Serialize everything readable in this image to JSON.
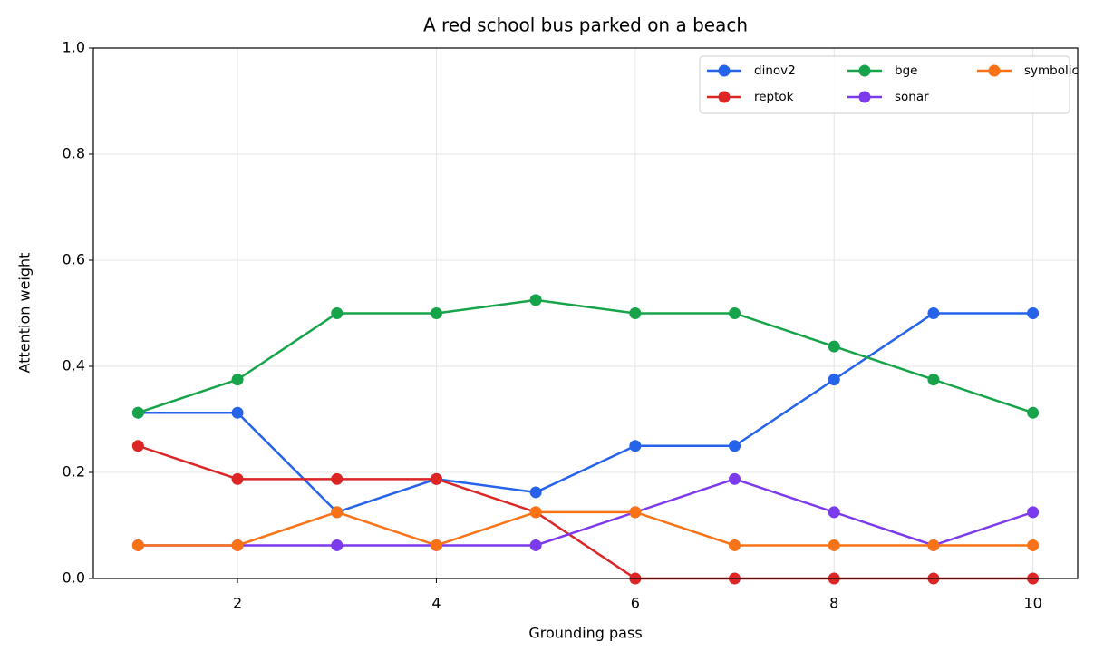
{
  "chart_data": {
    "type": "line",
    "title": "A red school bus parked on a beach",
    "x_label": "Grounding pass",
    "y_label": "Attention weight",
    "x": [
      1,
      2,
      3,
      4,
      5,
      6,
      7,
      8,
      9,
      10
    ],
    "series": [
      {
        "name": "dinov2",
        "color": "#2563eb",
        "values": [
          0.3125,
          0.3125,
          0.125,
          0.1875,
          0.1625,
          0.25,
          0.25,
          0.375,
          0.5,
          0.5
        ]
      },
      {
        "name": "reptok",
        "color": "#dc2626",
        "values": [
          0.25,
          0.1875,
          0.1875,
          0.1875,
          0.125,
          0,
          0,
          0,
          0,
          0
        ]
      },
      {
        "name": "bge",
        "color": "#16a34a",
        "values": [
          0.3125,
          0.375,
          0.5,
          0.5,
          0.525,
          0.5,
          0.5,
          0.4375,
          0.375,
          0.3125
        ]
      },
      {
        "name": "sonar",
        "color": "#7c3aed",
        "values": [
          0.0625,
          0.0625,
          0.0625,
          0.0625,
          0.0625,
          0.125,
          0.1875,
          0.125,
          0.0625,
          0.125
        ]
      },
      {
        "name": "symbolic",
        "color": "#f97316",
        "values": [
          0.0625,
          0.0625,
          0.125,
          0.0625,
          0.125,
          0.125,
          0.0625,
          0.0625,
          0.0625,
          0.0625
        ]
      }
    ],
    "xlim": [
      0.55,
      10.45
    ],
    "ylim": [
      0,
      1
    ],
    "xticks": [
      2,
      4,
      6,
      8,
      10
    ],
    "yticks": [
      {
        "value": 0,
        "label": "0.0"
      },
      0.2,
      0.4,
      0.6,
      0.8,
      {
        "value": 1,
        "label": "1.0"
      }
    ],
    "grid": true,
    "legend_position": "upper right"
  }
}
